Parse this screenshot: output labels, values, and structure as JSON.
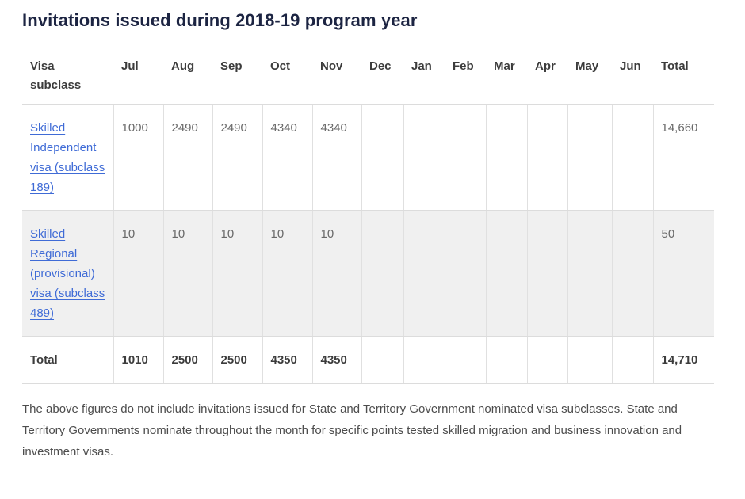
{
  "page": {
    "title": "Invitations issued during 2018-19 program year",
    "footnote": "The above figures do not include invitations issued for State and Territory Government nominated visa subclasses. State and Territory Governments nominate throughout the month for specific points tested skilled migration and business innovation and investment visas."
  },
  "table": {
    "columns": [
      "Visa subclass",
      "Jul",
      "Aug",
      "Sep",
      "Oct",
      "Nov",
      "Dec",
      "Jan",
      "Feb",
      "Mar",
      "Apr",
      "May",
      "Jun",
      "Total"
    ],
    "rows": [
      {
        "label": "Skilled Independent visa (subclass 189)",
        "is_link": true,
        "values": [
          "1000",
          "2490",
          "2490",
          "4340",
          "4340",
          "",
          "",
          "",
          "",
          "",
          "",
          "",
          "14,660"
        ]
      },
      {
        "label": "Skilled Regional (provisional) visa (subclass 489)",
        "is_link": true,
        "values": [
          "10",
          "10",
          "10",
          "10",
          "10",
          "",
          "",
          "",
          "",
          "",
          "",
          "",
          "50"
        ]
      }
    ],
    "total_row": {
      "label": "Total",
      "values": [
        "1010",
        "2500",
        "2500",
        "4350",
        "4350",
        "",
        "",
        "",
        "",
        "",
        "",
        "",
        "14,710"
      ]
    }
  },
  "colors": {
    "title_text": "#1c2442",
    "header_text": "#3c3c3c",
    "cell_text": "#696969",
    "link_blue": "#3f6bd6",
    "stripe_row_bg": "#f0f0f0",
    "border": "#dcdcdc",
    "footnote_text": "#4d4d4d"
  }
}
